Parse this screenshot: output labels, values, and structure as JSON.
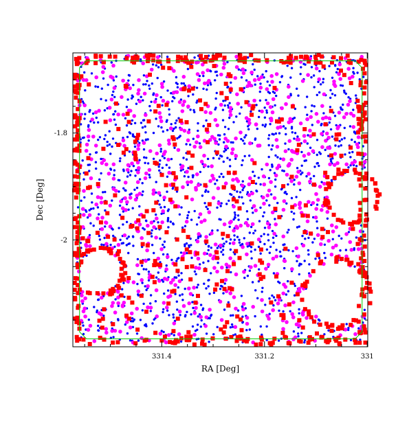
{
  "chart_data": {
    "type": "scatter",
    "title": "",
    "xlabel": "RA [Deg]",
    "ylabel": "Dec [Deg]",
    "xlim": [
      331.573,
      330.999
    ],
    "ylim": [
      -2.2,
      -1.65
    ],
    "x_ticks": [
      331.4,
      331.2,
      331
    ],
    "x_tick_labels": [
      "331.4",
      "331.2",
      "331"
    ],
    "y_ticks": [
      -1.8,
      -2
    ],
    "y_tick_labels": [
      "-1.8",
      "-2"
    ],
    "grid": false,
    "legend": "none",
    "series": [
      {
        "marker": "dot",
        "color": "#0000ff",
        "approx_count": 1400,
        "points": []
      },
      {
        "marker": "filled-circle",
        "color": "#ff00ff",
        "approx_count": 700,
        "points": []
      },
      {
        "marker": "filled-square",
        "color": "#ff0000",
        "approx_count": 600,
        "points": []
      }
    ],
    "footprint_outline": {
      "color": "#00cc00",
      "shape": "rectangle with clipped corners",
      "ra_range": [
        331.56,
        331.01
      ],
      "dec_range": [
        -2.185,
        -1.665
      ]
    },
    "masked_regions": [
      {
        "shape": "octagon",
        "center": [
          331.52,
          -2.06
        ],
        "size_deg": 0.04
      },
      {
        "shape": "octagon",
        "center": [
          331.06,
          -2.1
        ],
        "size_deg": 0.06
      },
      {
        "shape": "octagon",
        "center": [
          331.03,
          -1.92
        ],
        "size_deg": 0.045
      }
    ]
  }
}
